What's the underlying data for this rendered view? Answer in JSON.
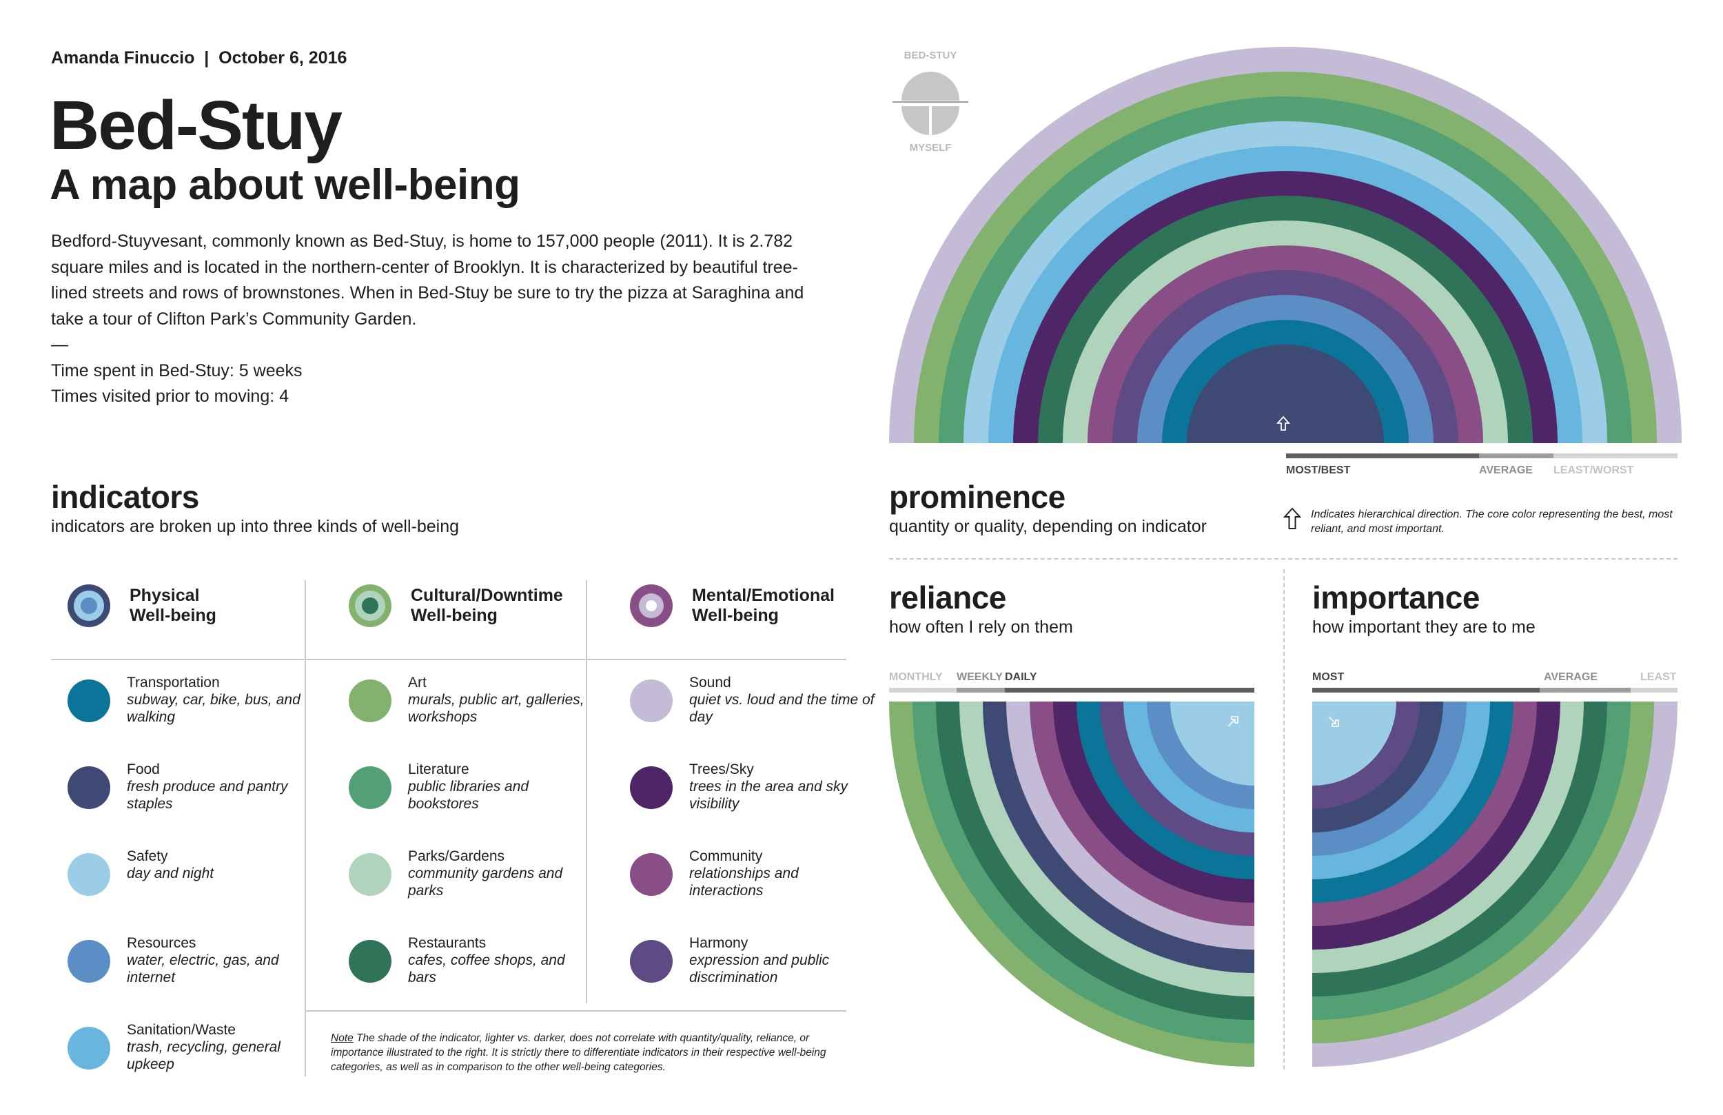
{
  "header": {
    "byline_author": "Amanda Finuccio",
    "byline_date": "October 6, 2016",
    "title": "Bed-Stuy",
    "subtitle": "A map about well-being"
  },
  "intro": {
    "paragraph": "Bedford-Stuyvesant, commonly known as Bed-Stuy, is home to 157,000 people (2011). It is 2.782 square miles and is located in the northern-center of Brooklyn. It is characterized by beautiful tree-lined streets and rows of brownstones. When in Bed-Stuy be sure to try the pizza at Saraghina and take a tour of Clifton Park’s Community Garden.",
    "dash": "—",
    "time_spent": "Time spent in Bed-Stuy: 5 weeks",
    "times_visited": "Times visited prior to moving: 4"
  },
  "indicators": {
    "title": "indicators",
    "subtitle": "indicators are broken up into three kinds of well-being",
    "categories": [
      {
        "line1": "Physical",
        "line2": "Well-being",
        "outer": "#3e4a74",
        "mid": "#9ccde6",
        "inner": "#5a8ec4"
      },
      {
        "line1": "Cultural/Downtime",
        "line2": "Well-being",
        "outer": "#82b26e",
        "mid": "#b0d3bb",
        "inner": "#2f7359"
      },
      {
        "line1": "Mental/Emotional",
        "line2": "Well-being",
        "outer": "#8a4e86",
        "mid": "#c4bbd6",
        "inner": "#ffffff"
      }
    ],
    "columns": [
      [
        {
          "name": "Transportation",
          "desc": "subway, car, bike, bus, and walking",
          "color": "#0a7499"
        },
        {
          "name": "Food",
          "desc": "fresh produce and pantry staples",
          "color": "#3e4a74"
        },
        {
          "name": "Safety",
          "desc": "day and night",
          "color": "#9ccde6"
        },
        {
          "name": "Resources",
          "desc": "water, electric, gas, and internet",
          "color": "#5a8ec4"
        },
        {
          "name": "Sanitation/Waste",
          "desc": "trash, recycling, general upkeep",
          "color": "#67b6df"
        }
      ],
      [
        {
          "name": "Art",
          "desc": "murals, public art, galleries, workshops",
          "color": "#82b26e"
        },
        {
          "name": "Literature",
          "desc": "public libraries and bookstores",
          "color": "#52a074"
        },
        {
          "name": "Parks/Gardens",
          "desc": "community gardens and parks",
          "color": "#b0d3bb"
        },
        {
          "name": "Restaurants",
          "desc": "cafes, coffee shops, and bars",
          "color": "#2f7359"
        }
      ],
      [
        {
          "name": "Sound",
          "desc": "quiet vs. loud and the time of day",
          "color": "#c4bbd6"
        },
        {
          "name": "Trees/Sky",
          "desc": "trees in the area and sky visibility",
          "color": "#4e2567"
        },
        {
          "name": "Community",
          "desc": "relationships and interactions",
          "color": "#8a4e86"
        },
        {
          "name": "Harmony",
          "desc": "expression and public discrimination",
          "color": "#5e4a84"
        }
      ]
    ],
    "note_label": "Note",
    "note_text": " The shade of the indicator, lighter vs. darker, does not correlate with quantity/quality, reliance, or importance illustrated to the right. It is strictly there to differentiate indicators in their respective well-being categories, as well as in comparison to the other well-being categories."
  },
  "legend_key": {
    "top_label": "BED-STUY",
    "bottom_label": "MYSELF",
    "color": "#c6c6c6"
  },
  "prominence": {
    "title": "prominence",
    "subtitle": "quantity or quality, depending on indicator",
    "scale_best": "MOST/BEST",
    "scale_avg": "AVERAGE",
    "scale_worst": "LEAST/WORST",
    "direction_note": "Indicates hierarchical direction. The core color representing the best, most reliant, and most important.",
    "rings_outer_to_inner": [
      "#c4bbd6",
      "#82b26e",
      "#52a074",
      "#9ccde6",
      "#67b6df",
      "#4e2567",
      "#2f7359",
      "#b0d3bb",
      "#8a4e86",
      "#5e4a84",
      "#5a8ec4",
      "#0a7499",
      "#3e4a74"
    ]
  },
  "reliance": {
    "title": "reliance",
    "subtitle": "how often I rely on them",
    "scale_monthly": "MONTHLY",
    "scale_weekly": "WEEKLY",
    "scale_daily": "DAILY",
    "rings_outer_to_inner": [
      "#82b26e",
      "#52a074",
      "#2f7359",
      "#b0d3bb",
      "#3e4a74",
      "#c4bbd6",
      "#8a4e86",
      "#4e2567",
      "#0a7499",
      "#5e4a84",
      "#67b6df",
      "#5a8ec4",
      "#9ccde6"
    ]
  },
  "importance": {
    "title": "importance",
    "subtitle": "how important they are to me",
    "scale_most": "MOST",
    "scale_avg": "AVERAGE",
    "scale_least": "LEAST",
    "rings_outer_to_inner": [
      "#c4bbd6",
      "#82b26e",
      "#52a074",
      "#2f7359",
      "#b0d3bb",
      "#4e2567",
      "#8a4e86",
      "#0a7499",
      "#67b6df",
      "#5a8ec4",
      "#3e4a74",
      "#5e4a84",
      "#9ccde6"
    ]
  }
}
